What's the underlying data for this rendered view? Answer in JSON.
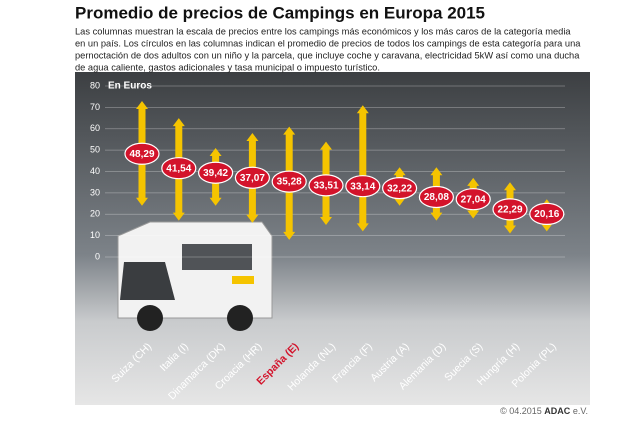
{
  "chart_data": {
    "type": "range_bar",
    "title": "Promedio de precios de Campings en Europa 2015",
    "description": [
      "Las columnas muestran la escala de precios entre los campings más económicos y los más caros de la categoría media",
      "en un país. Los círculos en las columnas indican el promedio de precios de todos los campings de esta categoría para una",
      "pernoctación de dos adultos con un niño y la parcela, que incluye coche y caravana, electricidad 5kW así como una ducha",
      "de agua caliente, gastos adicionales y tasa municipal o impuesto turístico."
    ],
    "y_label": "En Euros",
    "categories": [
      "Suiza (CH)",
      "Italia (I)",
      "Dinamarca (DK)",
      "Croacia (HR)",
      "España (E)",
      "Holanda (NL)",
      "Francia (F)",
      "Austria (A)",
      "Alemania (D)",
      "Suecia (S)",
      "Hungría (H)",
      "Polonia (PL)"
    ],
    "category_colors": [
      "#ffffff",
      "#ffffff",
      "#ffffff",
      "#ffffff",
      "#d3132b",
      "#ffffff",
      "#ffffff",
      "#ffffff",
      "#ffffff",
      "#ffffff",
      "#ffffff",
      "#ffffff"
    ],
    "values": [
      48.29,
      41.54,
      39.42,
      37.07,
      35.28,
      33.51,
      33.14,
      32.22,
      28.08,
      27.04,
      22.29,
      20.16
    ],
    "value_labels": [
      "48,29",
      "41,54",
      "39,42",
      "37,07",
      "35,28",
      "33,51",
      "33,14",
      "32,22",
      "28,08",
      "27,04",
      "22,29",
      "20,16"
    ],
    "min_values": [
      24,
      17,
      24,
      16,
      8,
      15,
      12,
      24,
      17,
      18,
      11,
      12
    ],
    "max_values": [
      73,
      65,
      51,
      58,
      61,
      54,
      71,
      42,
      42,
      37,
      35,
      27
    ],
    "range_color": "#f5c400",
    "value_color": "#d3132b",
    "ylim": [
      0,
      80
    ],
    "yticks": [
      0,
      10,
      20,
      30,
      40,
      50,
      60,
      70,
      80
    ],
    "grid": true,
    "footer": [
      "© 04.2015",
      "ADAC",
      "e.V."
    ]
  }
}
